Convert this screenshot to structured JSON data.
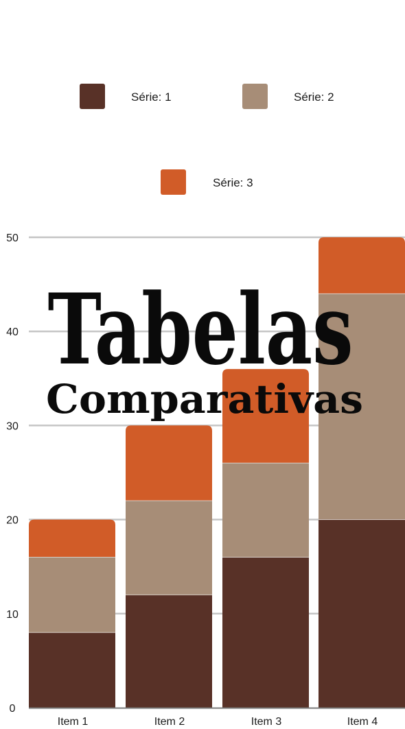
{
  "chart_data": {
    "type": "bar",
    "stacked": true,
    "title": "Tabelas",
    "subtitle": "Comparativas",
    "categories": [
      "Item 1",
      "Item 2",
      "Item 3",
      "Item 4"
    ],
    "series": [
      {
        "name": "Série: 1",
        "color": "#583127",
        "values": [
          8,
          12,
          16,
          20
        ]
      },
      {
        "name": "Série: 2",
        "color": "#A78D77",
        "values": [
          8,
          10,
          10,
          24
        ]
      },
      {
        "name": "Série: 3",
        "color": "#D15C28",
        "values": [
          4,
          8,
          10,
          6
        ]
      }
    ],
    "ylim": [
      0,
      50
    ],
    "yticks": [
      0,
      10,
      20,
      30,
      40,
      50
    ],
    "grid": true,
    "legend_position": "top"
  }
}
